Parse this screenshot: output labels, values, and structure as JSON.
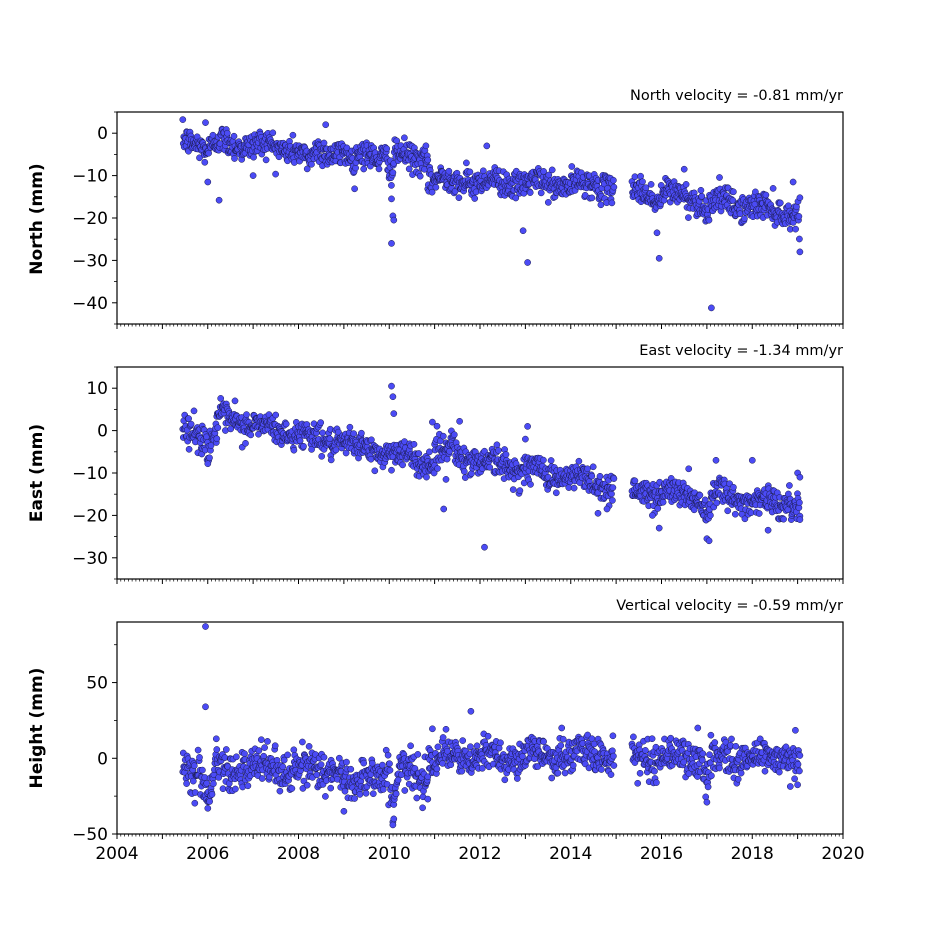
{
  "chart_data": [
    {
      "type": "scatter",
      "title": "North velocity = -0.81 mm/yr",
      "ylabel": "North (mm)",
      "xlim": [
        2004,
        2020
      ],
      "ylim": [
        -45,
        5
      ],
      "yticks": [
        0,
        -10,
        -20,
        -30,
        -40
      ],
      "ytick_labels": [
        "0",
        "−10",
        "−20",
        "−30",
        "−40"
      ],
      "point_color": "#4b4bf5",
      "segments": [
        {
          "x0": 2005.45,
          "x1": 2010.85,
          "y0": -1.5,
          "y1": -6.0,
          "noise": 1.6
        },
        {
          "x0": 2010.85,
          "x1": 2014.95,
          "y0": -11.0,
          "y1": -12.5,
          "noise": 1.5
        },
        {
          "x0": 2015.35,
          "x1": 2019.05,
          "y0": -13.0,
          "y1": -19.0,
          "noise": 1.6
        }
      ],
      "wiggles": [
        {
          "x": 2006.0,
          "dy": -2.0,
          "w": 0.15
        },
        {
          "x": 2008.2,
          "dy": -3.0,
          "w": 0.15
        },
        {
          "x": 2009.2,
          "dy": -3.0,
          "w": 0.1
        },
        {
          "x": 2010.05,
          "dy": -5.0,
          "w": 0.05
        },
        {
          "x": 2015.9,
          "dy": -2.5,
          "w": 0.1
        },
        {
          "x": 2017.0,
          "dy": -3.0,
          "w": 0.08
        }
      ],
      "outliers": [
        [
          2005.95,
          2.5
        ],
        [
          2006.0,
          -11.5
        ],
        [
          2006.25,
          -15.8
        ],
        [
          2007.0,
          -10.0
        ],
        [
          2008.6,
          2.0
        ],
        [
          2010.05,
          -15.5
        ],
        [
          2010.08,
          -19.5
        ],
        [
          2010.1,
          -20.5
        ],
        [
          2010.05,
          -26.0
        ],
        [
          2012.15,
          -3.0
        ],
        [
          2012.95,
          -23.0
        ],
        [
          2013.05,
          -30.5
        ],
        [
          2011.7,
          -7.0
        ],
        [
          2015.9,
          -23.5
        ],
        [
          2015.95,
          -29.5
        ],
        [
          2016.5,
          -8.5
        ],
        [
          2017.1,
          -41.2
        ],
        [
          2018.9,
          -11.5
        ],
        [
          2019.05,
          -28.0
        ]
      ]
    },
    {
      "type": "scatter",
      "title": "East velocity = -1.34 mm/yr",
      "ylabel": "East (mm)",
      "xlim": [
        2004,
        2020
      ],
      "ylim": [
        -35,
        15
      ],
      "yticks": [
        10,
        0,
        -10,
        -20,
        -30
      ],
      "ytick_labels": [
        "10",
        "0",
        "−10",
        "−20",
        "−30"
      ],
      "point_color": "#4b4bf5",
      "segments": [
        {
          "x0": 2005.45,
          "x1": 2006.2,
          "y0": 1.0,
          "y1": -1.0,
          "noise": 1.8
        },
        {
          "x0": 2006.2,
          "x1": 2011.0,
          "y0": 3.0,
          "y1": -7.5,
          "noise": 1.6
        },
        {
          "x0": 2011.0,
          "x1": 2014.95,
          "y0": -5.0,
          "y1": -13.0,
          "noise": 1.7
        },
        {
          "x0": 2015.35,
          "x1": 2019.05,
          "y0": -14.0,
          "y1": -17.5,
          "noise": 1.6
        }
      ],
      "wiggles": [
        {
          "x": 2006.0,
          "dy": -3.0,
          "w": 0.12
        },
        {
          "x": 2011.4,
          "dy": 3.0,
          "w": 0.1
        },
        {
          "x": 2017.0,
          "dy": -4.0,
          "w": 0.08
        },
        {
          "x": 2017.3,
          "dy": 3.0,
          "w": 0.1
        }
      ],
      "outliers": [
        [
          2006.0,
          -7.8
        ],
        [
          2006.6,
          7.0
        ],
        [
          2010.05,
          10.5
        ],
        [
          2010.08,
          8.0
        ],
        [
          2010.1,
          4.0
        ],
        [
          2010.95,
          2.0
        ],
        [
          2011.25,
          -11.5
        ],
        [
          2011.2,
          -18.5
        ],
        [
          2011.55,
          2.2
        ],
        [
          2012.1,
          -27.5
        ],
        [
          2013.05,
          1.0
        ],
        [
          2013.0,
          -2.0
        ],
        [
          2014.6,
          -19.5
        ],
        [
          2014.8,
          -18.5
        ],
        [
          2015.95,
          -23.0
        ],
        [
          2015.8,
          -20.0
        ],
        [
          2016.6,
          -9.0
        ],
        [
          2017.0,
          -25.5
        ],
        [
          2017.05,
          -26.0
        ],
        [
          2017.2,
          -7.0
        ],
        [
          2018.0,
          -7.0
        ],
        [
          2018.35,
          -23.5
        ],
        [
          2019.0,
          -10.0
        ],
        [
          2019.05,
          -11.0
        ],
        [
          2019.05,
          -21.0
        ]
      ]
    },
    {
      "type": "scatter",
      "title": "Vertical velocity = -0.59 mm/yr",
      "ylabel": "Height (mm)",
      "xlim": [
        2004,
        2020
      ],
      "ylim": [
        -50,
        90
      ],
      "yticks": [
        50,
        0,
        -50
      ],
      "ytick_labels": [
        "50",
        "0",
        "−50"
      ],
      "xticks": [
        2004,
        2006,
        2008,
        2010,
        2012,
        2014,
        2016,
        2018,
        2020
      ],
      "xtick_labels": [
        "2004",
        "2006",
        "2008",
        "2010",
        "2012",
        "2014",
        "2016",
        "2018",
        "2020"
      ],
      "point_color": "#4b4bf5",
      "segments": [
        {
          "x0": 2005.45,
          "x1": 2010.85,
          "y0": -5.0,
          "y1": -10.0,
          "noise": 6.5
        },
        {
          "x0": 2010.85,
          "x1": 2014.95,
          "y0": 0.0,
          "y1": 3.0,
          "noise": 5.5
        },
        {
          "x0": 2015.35,
          "x1": 2019.05,
          "y0": 1.0,
          "y1": 0.0,
          "noise": 6.0
        }
      ],
      "wiggles": [
        {
          "x": 2006.0,
          "dy": -18.0,
          "w": 0.12
        },
        {
          "x": 2009.2,
          "dy": -12.0,
          "w": 0.2
        },
        {
          "x": 2010.1,
          "dy": -20.0,
          "w": 0.08
        },
        {
          "x": 2017.0,
          "dy": -15.0,
          "w": 0.08
        }
      ],
      "outliers": [
        [
          2005.95,
          87.0
        ],
        [
          2005.95,
          34.0
        ],
        [
          2006.0,
          -33.0
        ],
        [
          2010.08,
          -44.0
        ],
        [
          2010.1,
          -40.0
        ],
        [
          2011.8,
          31.0
        ],
        [
          2010.95,
          19.5
        ],
        [
          2013.8,
          20.0
        ],
        [
          2016.8,
          20.0
        ],
        [
          2018.95,
          18.5
        ],
        [
          2019.0,
          -17.5
        ],
        [
          2009.0,
          -35.0
        ],
        [
          2017.0,
          -29.0
        ]
      ]
    }
  ]
}
